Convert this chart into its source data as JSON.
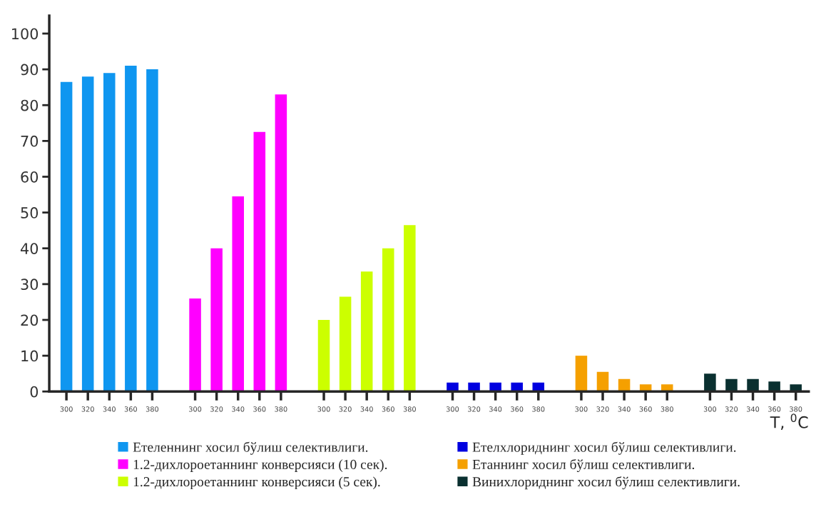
{
  "chart_data": {
    "type": "bar",
    "xlabel": "T, $^{0}$C",
    "categories": [
      "300",
      "320",
      "340",
      "360",
      "380",
      null,
      "300",
      "320",
      "340",
      "360",
      "380",
      null,
      "300",
      "320",
      "340",
      "360",
      "380",
      null,
      "300",
      "320",
      "340",
      "360",
      "380",
      null,
      "300",
      "320",
      "340",
      "360",
      "380",
      null,
      "300",
      "320",
      "340",
      "360",
      "380"
    ],
    "series": [
      {
        "name": "Етеленнинг хосил бўлиш селективлиги.",
        "color": "#0f96f0",
        "values": [
          86.5,
          88,
          89,
          91,
          90,
          null,
          null,
          null,
          null,
          null,
          null,
          null,
          null,
          null,
          null,
          null,
          null,
          null,
          null,
          null,
          null,
          null,
          null,
          null,
          null,
          null,
          null,
          null,
          null,
          null,
          null,
          null,
          null,
          null,
          null
        ]
      },
      {
        "name": "1.2-дихлороетаннинг конверсияси (10 сек).",
        "color": "#ff00ff",
        "values": [
          null,
          null,
          null,
          null,
          null,
          null,
          26,
          40,
          54.5,
          72.5,
          83,
          null,
          null,
          null,
          null,
          null,
          null,
          null,
          null,
          null,
          null,
          null,
          null,
          null,
          null,
          null,
          null,
          null,
          null,
          null,
          null,
          null,
          null,
          null,
          null
        ]
      },
      {
        "name": "1.2-дихлороетаннинг конверсияси (5 сек).",
        "color": "#ccff00",
        "values": [
          null,
          null,
          null,
          null,
          null,
          null,
          null,
          null,
          null,
          null,
          null,
          null,
          20,
          26.5,
          33.5,
          40,
          46.5,
          null,
          null,
          null,
          null,
          null,
          null,
          null,
          null,
          null,
          null,
          null,
          null,
          null,
          null,
          null,
          null,
          null,
          null
        ]
      },
      {
        "name": "Етелхлориднинг хосил бўлиш селективлиги.",
        "color": "#0000e0",
        "values": [
          null,
          null,
          null,
          null,
          null,
          null,
          null,
          null,
          null,
          null,
          null,
          null,
          null,
          null,
          null,
          null,
          null,
          null,
          2.5,
          2.5,
          2.5,
          2.5,
          2.5,
          null,
          null,
          null,
          null,
          null,
          null,
          null,
          null,
          null,
          null,
          null,
          null
        ]
      },
      {
        "name": "Етаннинг хосил бўлиш селективлиги.",
        "color": "#f5a000",
        "values": [
          null,
          null,
          null,
          null,
          null,
          null,
          null,
          null,
          null,
          null,
          null,
          null,
          null,
          null,
          null,
          null,
          null,
          null,
          null,
          null,
          null,
          null,
          null,
          null,
          10,
          5.5,
          3.5,
          2,
          2,
          null,
          null,
          null,
          null,
          null,
          null
        ]
      },
      {
        "name": "Винихлориднинг хосил бўлиш селективлиги.",
        "color": "#0a3030",
        "values": [
          null,
          null,
          null,
          null,
          null,
          null,
          null,
          null,
          null,
          null,
          null,
          null,
          null,
          null,
          null,
          null,
          null,
          null,
          null,
          null,
          null,
          null,
          null,
          null,
          null,
          null,
          null,
          null,
          null,
          null,
          5,
          3.5,
          3.5,
          2.8,
          2
        ]
      }
    ],
    "ylim": [
      0,
      105
    ],
    "yticks": [
      0,
      10,
      20,
      30,
      40,
      50,
      60,
      70,
      80,
      90,
      100
    ],
    "grid": false,
    "legend": "bottom"
  }
}
